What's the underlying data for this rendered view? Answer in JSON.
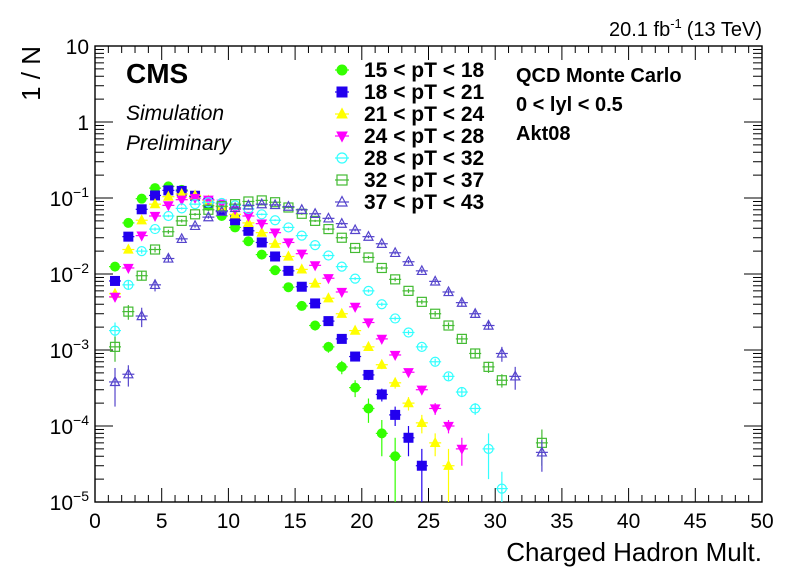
{
  "header": {
    "lumi_value": "20.1 fb",
    "lumi_exp": "-1",
    "lumi_energy": "(13 TeV)"
  },
  "cms_label": {
    "title": "CMS",
    "sub1": "Simulation",
    "sub2": "Preliminary"
  },
  "info_box": {
    "line1": "QCD Monte Carlo",
    "line2": "0 < lyl < 0.5",
    "line3": "Akt08"
  },
  "chart_data": {
    "type": "scatter",
    "title": "",
    "xlabel": "Charged Hadron Mult.",
    "ylabel": "1 / N",
    "xlim": [
      0,
      50
    ],
    "ylim": [
      1e-05,
      10
    ],
    "yscale": "log",
    "grid": false,
    "legend_position": "top-center",
    "x_ticks": [
      0,
      5,
      10,
      15,
      20,
      25,
      30,
      35,
      40,
      45,
      50
    ],
    "x_tick_labels": [
      "0",
      "5",
      "10",
      "15",
      "20",
      "25",
      "30",
      "35",
      "40",
      "45",
      "50"
    ],
    "y_ticks": [
      1e-05,
      0.0001,
      0.001,
      0.01,
      0.1,
      1,
      10
    ],
    "y_tick_labels": [
      {
        "base": "10",
        "exp": "−5"
      },
      {
        "base": "10",
        "exp": "−4"
      },
      {
        "base": "10",
        "exp": "−3"
      },
      {
        "base": "10",
        "exp": "−2"
      },
      {
        "base": "10",
        "exp": "−1"
      },
      {
        "base": "1",
        "exp": ""
      },
      {
        "base": "10",
        "exp": ""
      }
    ],
    "series": [
      {
        "name": "15 < pT < 18",
        "color": "#33ff00",
        "marker": "circle-filled",
        "x": [
          1.5,
          2.5,
          3.5,
          4.5,
          5.5,
          6.5,
          7.5,
          8.5,
          9.5,
          10.5,
          11.5,
          12.5,
          13.5,
          14.5,
          15.5,
          16.5,
          17.5,
          18.5,
          19.5,
          20.5,
          21.5,
          22.5
        ],
        "y": [
          0.0125,
          0.047,
          0.098,
          0.135,
          0.142,
          0.128,
          0.105,
          0.079,
          0.058,
          0.041,
          0.027,
          0.018,
          0.0112,
          0.0067,
          0.0038,
          0.0021,
          0.0011,
          0.0006,
          0.00032,
          0.00017,
          8e-05,
          4e-05
        ],
        "yerr": [
          0.001,
          0.002,
          0.003,
          0.004,
          0.004,
          0.004,
          0.003,
          0.003,
          0.002,
          0.002,
          0.0015,
          0.001,
          0.0008,
          0.0006,
          0.0004,
          0.0003,
          0.00018,
          0.00012,
          8e-05,
          6e-05,
          4e-05,
          3e-05
        ]
      },
      {
        "name": "18 < pT < 21",
        "color": "#2200ee",
        "marker": "square-filled",
        "x": [
          1.5,
          2.5,
          3.5,
          4.5,
          5.5,
          6.5,
          7.5,
          8.5,
          9.5,
          10.5,
          11.5,
          12.5,
          13.5,
          14.5,
          15.5,
          16.5,
          17.5,
          18.5,
          19.5,
          20.5,
          21.5,
          22.5,
          23.5,
          24.5
        ],
        "y": [
          0.0081,
          0.031,
          0.071,
          0.108,
          0.126,
          0.124,
          0.107,
          0.087,
          0.068,
          0.051,
          0.037,
          0.026,
          0.017,
          0.011,
          0.0068,
          0.0041,
          0.0024,
          0.0014,
          0.00082,
          0.00047,
          0.00026,
          0.00014,
          7e-05,
          3e-05
        ],
        "yerr": [
          0.0008,
          0.0015,
          0.0025,
          0.003,
          0.003,
          0.003,
          0.003,
          0.002,
          0.002,
          0.0018,
          0.0014,
          0.001,
          0.0008,
          0.0006,
          0.0004,
          0.0003,
          0.0002,
          0.00014,
          0.0001,
          7e-05,
          5e-05,
          4e-05,
          3e-05,
          2e-05
        ]
      },
      {
        "name": "21 < pT < 24",
        "color": "#ffff00",
        "marker": "triangle-up-filled",
        "x": [
          1.5,
          2.5,
          3.5,
          4.5,
          5.5,
          6.5,
          7.5,
          8.5,
          9.5,
          10.5,
          11.5,
          12.5,
          13.5,
          14.5,
          15.5,
          16.5,
          17.5,
          18.5,
          19.5,
          20.5,
          21.5,
          22.5,
          23.5,
          24.5,
          25.5,
          26.5
        ],
        "y": [
          0.0055,
          0.021,
          0.051,
          0.083,
          0.104,
          0.113,
          0.108,
          0.093,
          0.077,
          0.061,
          0.047,
          0.035,
          0.025,
          0.017,
          0.0115,
          0.0075,
          0.0048,
          0.003,
          0.0018,
          0.0011,
          0.00064,
          0.00037,
          0.0002,
          0.00011,
          6e-05,
          3e-05
        ],
        "yerr": [
          0.0006,
          0.0012,
          0.002,
          0.0025,
          0.003,
          0.003,
          0.003,
          0.0025,
          0.002,
          0.0018,
          0.0015,
          0.0012,
          0.001,
          0.0008,
          0.0006,
          0.0004,
          0.0003,
          0.0002,
          0.00015,
          0.0001,
          8e-05,
          6e-05,
          4e-05,
          3e-05,
          2e-05,
          2e-05
        ]
      },
      {
        "name": "24 < pT < 28",
        "color": "#ff00ff",
        "marker": "triangle-down-filled",
        "x": [
          1.5,
          2.5,
          3.5,
          4.5,
          5.5,
          6.5,
          7.5,
          8.5,
          9.5,
          10.5,
          11.5,
          12.5,
          13.5,
          14.5,
          15.5,
          16.5,
          17.5,
          18.5,
          19.5,
          20.5,
          21.5,
          22.5,
          23.5,
          24.5,
          25.5,
          26.5,
          27.5
        ],
        "y": [
          0.005,
          0.012,
          0.032,
          0.058,
          0.08,
          0.095,
          0.1,
          0.095,
          0.084,
          0.071,
          0.058,
          0.046,
          0.035,
          0.026,
          0.0185,
          0.013,
          0.0088,
          0.0058,
          0.0037,
          0.0023,
          0.0014,
          0.00086,
          0.00051,
          0.0003,
          0.00017,
          0.0001,
          5e-05
        ],
        "yerr": [
          0.0007,
          0.001,
          0.0018,
          0.0022,
          0.0025,
          0.0028,
          0.0028,
          0.0026,
          0.0022,
          0.002,
          0.0017,
          0.0014,
          0.0011,
          0.0009,
          0.0007,
          0.0005,
          0.0004,
          0.0003,
          0.00022,
          0.00016,
          0.00012,
          9e-05,
          6e-05,
          4e-05,
          3e-05,
          2e-05,
          2e-05
        ]
      },
      {
        "name": "28 < pT < 32",
        "color": "#33ffff",
        "marker": "circle-open",
        "x": [
          1.5,
          2.5,
          3.5,
          4.5,
          5.5,
          6.5,
          7.5,
          8.5,
          9.5,
          10.5,
          11.5,
          12.5,
          13.5,
          14.5,
          15.5,
          16.5,
          17.5,
          18.5,
          19.5,
          20.5,
          21.5,
          22.5,
          23.5,
          24.5,
          25.5,
          26.5,
          27.5,
          28.5,
          29.5,
          30.5
        ],
        "y": [
          0.0018,
          0.0072,
          0.02,
          0.039,
          0.058,
          0.073,
          0.083,
          0.088,
          0.086,
          0.08,
          0.072,
          0.061,
          0.051,
          0.041,
          0.032,
          0.024,
          0.0175,
          0.0125,
          0.0087,
          0.006,
          0.004,
          0.0026,
          0.0017,
          0.0011,
          0.0007,
          0.00045,
          0.00028,
          0.00017,
          5e-05,
          1.5e-05
        ],
        "yerr": [
          0.0005,
          0.0009,
          0.0015,
          0.002,
          0.0023,
          0.0025,
          0.0026,
          0.0026,
          0.0025,
          0.0023,
          0.002,
          0.0018,
          0.0015,
          0.0012,
          0.001,
          0.0008,
          0.0006,
          0.0005,
          0.0004,
          0.0003,
          0.00022,
          0.00016,
          0.00012,
          9e-05,
          7e-05,
          5e-05,
          4e-05,
          3e-05,
          3e-05,
          1e-05
        ]
      },
      {
        "name": "32 < pT < 37",
        "color": "#44bb33",
        "marker": "square-open",
        "x": [
          1.5,
          2.5,
          3.5,
          4.5,
          5.5,
          6.5,
          7.5,
          8.5,
          9.5,
          10.5,
          11.5,
          12.5,
          13.5,
          14.5,
          15.5,
          16.5,
          17.5,
          18.5,
          19.5,
          20.5,
          21.5,
          22.5,
          23.5,
          24.5,
          25.5,
          26.5,
          27.5,
          28.5,
          29.5,
          30.5,
          33.5
        ],
        "y": [
          0.0011,
          0.0032,
          0.0095,
          0.021,
          0.036,
          0.05,
          0.061,
          0.07,
          0.078,
          0.083,
          0.09,
          0.093,
          0.088,
          0.075,
          0.062,
          0.05,
          0.039,
          0.03,
          0.022,
          0.0165,
          0.012,
          0.0085,
          0.006,
          0.0043,
          0.003,
          0.0021,
          0.0014,
          0.0009,
          0.0006,
          0.0004,
          6e-05
        ],
        "yerr": [
          0.0004,
          0.0007,
          0.0013,
          0.0018,
          0.0022,
          0.0024,
          0.0025,
          0.0026,
          0.0027,
          0.0028,
          0.0028,
          0.0027,
          0.0025,
          0.0022,
          0.002,
          0.0017,
          0.0014,
          0.0012,
          0.001,
          0.0008,
          0.0006,
          0.0005,
          0.0004,
          0.0003,
          0.00025,
          0.0002,
          0.00015,
          0.00012,
          0.0001,
          8e-05,
          3e-05
        ]
      },
      {
        "name": "37 < pT < 43",
        "color": "#5544cc",
        "marker": "triangle-up-open",
        "x": [
          1.5,
          2.5,
          3.5,
          4.5,
          5.5,
          6.5,
          7.5,
          8.5,
          9.5,
          10.5,
          11.5,
          12.5,
          13.5,
          14.5,
          15.5,
          16.5,
          17.5,
          18.5,
          19.5,
          20.5,
          21.5,
          22.5,
          23.5,
          24.5,
          25.5,
          26.5,
          27.5,
          28.5,
          29.5,
          30.5,
          31.5,
          33.5
        ],
        "y": [
          0.00038,
          0.00048,
          0.0028,
          0.0072,
          0.016,
          0.029,
          0.043,
          0.056,
          0.066,
          0.074,
          0.08,
          0.083,
          0.081,
          0.077,
          0.07,
          0.062,
          0.054,
          0.046,
          0.038,
          0.031,
          0.025,
          0.019,
          0.0145,
          0.011,
          0.008,
          0.0058,
          0.0042,
          0.003,
          0.0021,
          0.0009,
          0.00045,
          4.5e-05
        ],
        "yerr": [
          0.0002,
          0.00015,
          0.0008,
          0.0013,
          0.0018,
          0.0021,
          0.0023,
          0.0025,
          0.0027,
          0.0028,
          0.0028,
          0.0028,
          0.0027,
          0.0026,
          0.0024,
          0.0022,
          0.002,
          0.0018,
          0.0016,
          0.0014,
          0.0012,
          0.001,
          0.0008,
          0.0007,
          0.0006,
          0.0005,
          0.0004,
          0.0003,
          0.00025,
          0.0002,
          0.00015,
          2e-05
        ]
      }
    ]
  }
}
